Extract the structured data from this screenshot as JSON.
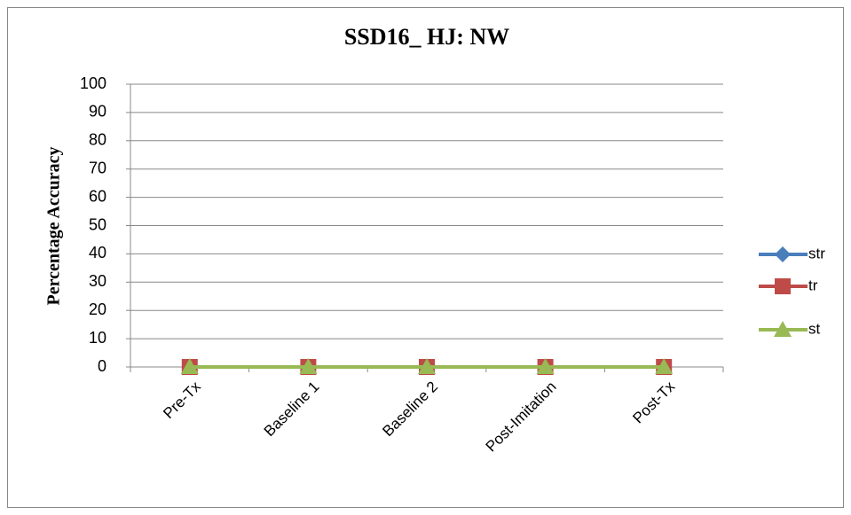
{
  "chart_data": {
    "type": "line",
    "title": "SSD16_ HJ: NW",
    "y_label": "Percentage Accuracy",
    "categories": [
      "Pre-Tx",
      "Baseline 1",
      "Baseline 2",
      "Post-Imitation",
      "Post-Tx"
    ],
    "series": [
      {
        "name": "str",
        "color": "#4a7ebb",
        "marker": "diamond",
        "values": [
          0,
          0,
          0,
          0,
          0
        ]
      },
      {
        "name": "tr",
        "color": "#be4b48",
        "marker": "square",
        "values": [
          0,
          0,
          0,
          0,
          0
        ]
      },
      {
        "name": "st",
        "color": "#98b954",
        "marker": "triangle",
        "values": [
          0,
          0,
          0,
          0,
          0
        ]
      }
    ],
    "ylim": [
      0,
      100
    ],
    "yticks": [
      0,
      10,
      20,
      30,
      40,
      50,
      60,
      70,
      80,
      90,
      100
    ],
    "grid": true,
    "legend": "right"
  }
}
